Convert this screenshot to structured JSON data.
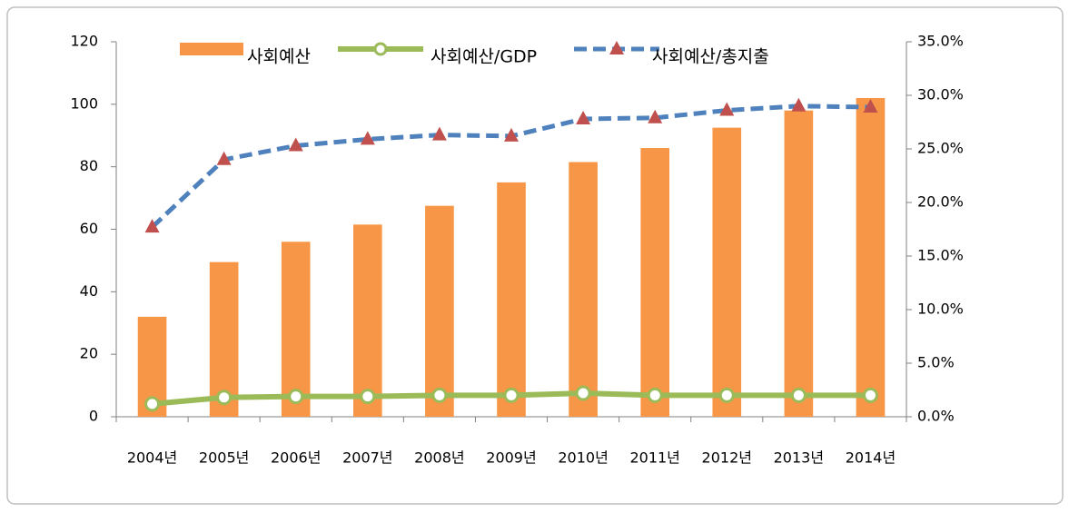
{
  "chart_data": {
    "type": "bar",
    "categories": [
      "2004년",
      "2005년",
      "2006년",
      "2007년",
      "2008년",
      "2009년",
      "2010년",
      "2011년",
      "2012년",
      "2013년",
      "2014년"
    ],
    "series": [
      {
        "name": "사회예산",
        "type": "bar",
        "color": "#f79646",
        "values": [
          32,
          49.5,
          56,
          61.5,
          67.5,
          75,
          81.5,
          86,
          92.5,
          98,
          102
        ]
      },
      {
        "name": "사회예산/GDP",
        "type": "line",
        "axis": "y2",
        "color": "#9bbb59",
        "values": [
          1.2,
          1.8,
          1.9,
          1.9,
          2.0,
          2.0,
          2.2,
          2.0,
          2.0,
          2.0,
          2.0
        ]
      },
      {
        "name": "사회예산/총지출",
        "type": "line",
        "axis": "y2",
        "color": "#4f81bd",
        "marker_color": "#c0504d",
        "dashed": true,
        "values": [
          17.7,
          24.0,
          25.3,
          25.9,
          26.3,
          26.2,
          27.8,
          27.9,
          28.6,
          29.0,
          28.9
        ]
      }
    ],
    "ylim": [
      0,
      120
    ],
    "yticks": [
      0,
      20,
      40,
      60,
      80,
      100,
      120
    ],
    "y2lim": [
      0,
      35
    ],
    "y2ticks": [
      {
        "value": 0,
        "label": "0.0%"
      },
      {
        "value": 5,
        "label": "5.0%"
      },
      {
        "value": 10,
        "label": "10.0%"
      },
      {
        "value": 15,
        "label": "15.0%"
      },
      {
        "value": 20,
        "label": "20.0%"
      },
      {
        "value": 25,
        "label": "25.0%"
      },
      {
        "value": 30,
        "label": "30.0%"
      },
      {
        "value": 35,
        "label": "35.0%"
      }
    ],
    "grid": false,
    "legend": "top"
  }
}
